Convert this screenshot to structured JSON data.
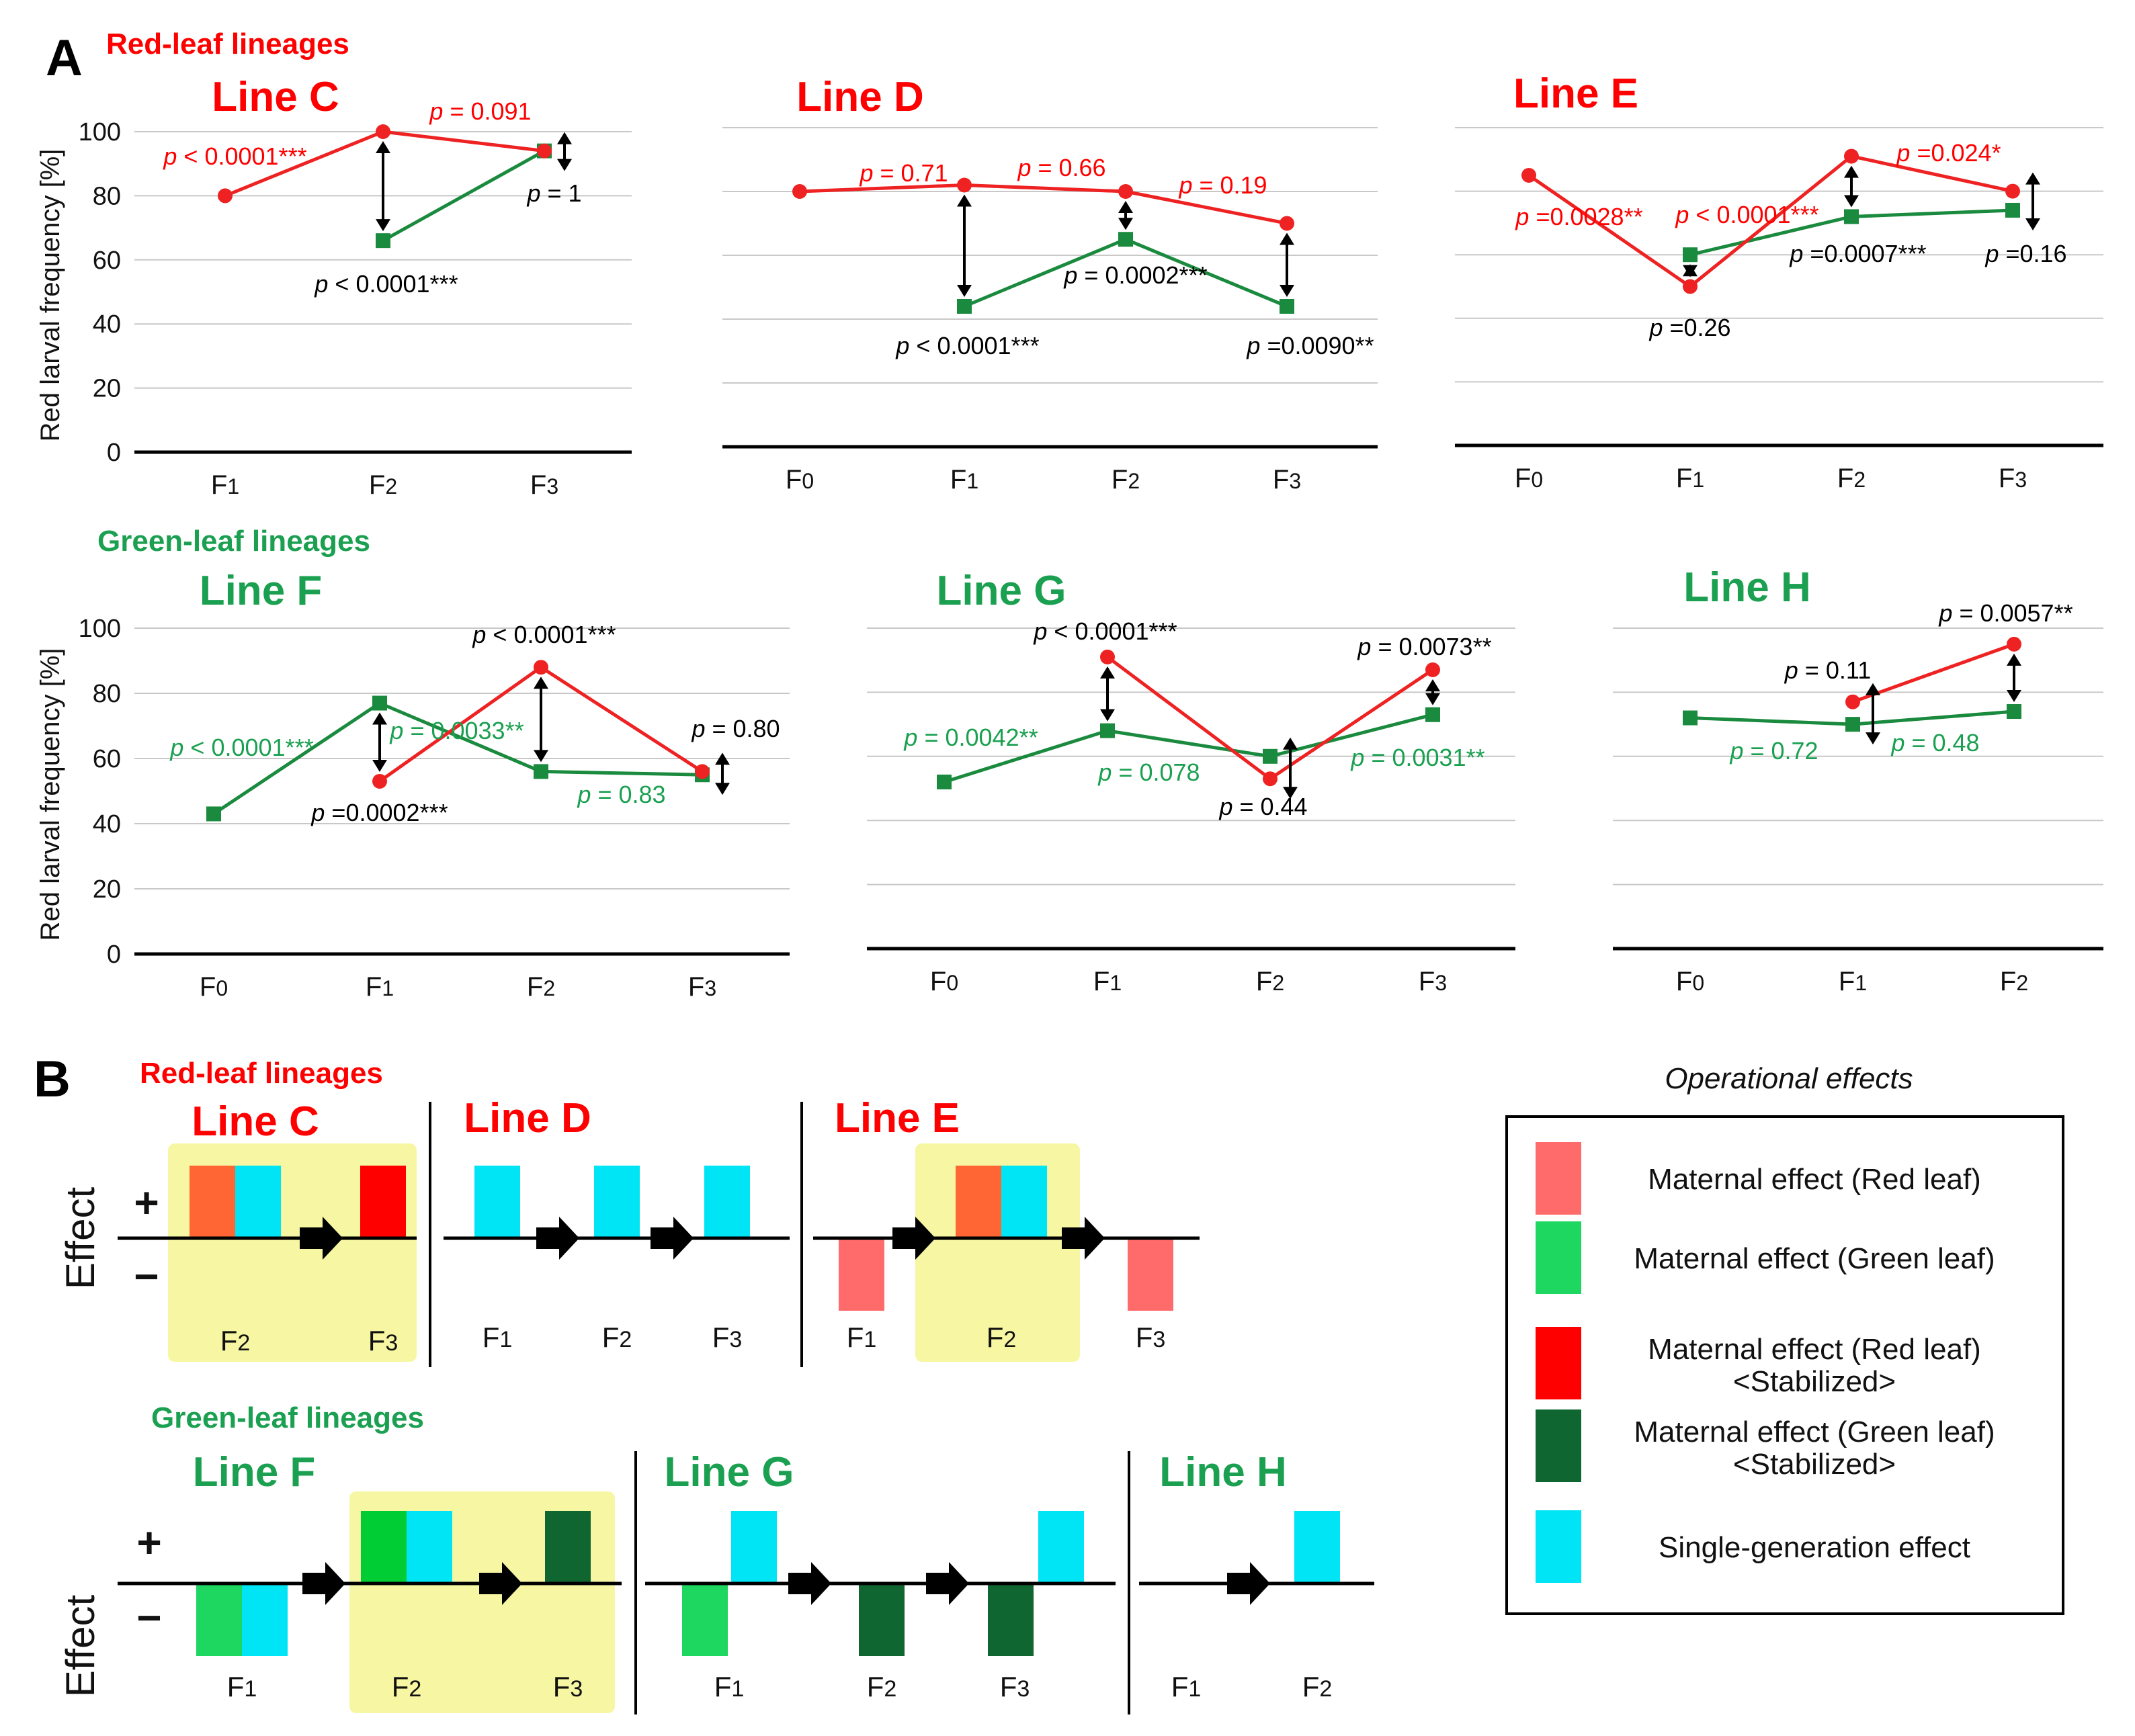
{
  "colors": {
    "red_line": "#ee2222",
    "green_line": "#1a8a3e",
    "red_text": "#ff0000",
    "green_text": "#1aa050",
    "highlight": "#f7f7a3",
    "grid": "#c8c8c8",
    "maternal_red": "#ff6b6b",
    "maternal_red_overlap": "#ff6633",
    "maternal_green": "#1ed760",
    "maternal_green_overlap": "#00cc33",
    "stabilized_red": "#ff0000",
    "stabilized_green": "#0f6630",
    "single_generation": "#00e5f5"
  },
  "panel_a": {
    "label": "A",
    "red_group_label": "Red-leaf lineages",
    "green_group_label": "Green-leaf lineages",
    "y_axis_label": "Red larval frequency [%]",
    "y_ticks": [
      "0",
      "20",
      "40",
      "60",
      "80",
      "100"
    ]
  },
  "panel_b": {
    "label": "B",
    "red_group_label": "Red-leaf lineages",
    "green_group_label": "Green-leaf lineages",
    "y_axis_label": "Effect",
    "plus": "+",
    "minus": "−",
    "legend_title": "Operational effects",
    "legend": [
      {
        "label": "Maternal effect (Red leaf)",
        "sub": "",
        "color": "#ff6b6b"
      },
      {
        "label": "Maternal effect (Green leaf)",
        "sub": "",
        "color": "#1ed760"
      },
      {
        "label": "Maternal effect (Red leaf)",
        "sub": "<Stabilized>",
        "color": "#ff0000"
      },
      {
        "label": "Maternal effect (Green leaf)",
        "sub": "<Stabilized>",
        "color": "#0f6630"
      },
      {
        "label": "Single-generation effect",
        "sub": "",
        "color": "#00e5f5"
      }
    ]
  },
  "chart_data": [
    {
      "type": "line",
      "group": "red-leaf",
      "title": "Line C",
      "categories": [
        "F1",
        "F2",
        "F3"
      ],
      "ylim": [
        0,
        100
      ],
      "ylabel": "Red larval frequency [%]",
      "series": [
        {
          "name": "red",
          "values": [
            80,
            100,
            94
          ]
        },
        {
          "name": "green",
          "values": [
            null,
            66,
            94
          ]
        }
      ],
      "arrows": [
        1,
        2
      ],
      "annotations": [
        {
          "text": "p < 0.0001***",
          "color": "red"
        },
        {
          "text": "p = 0.091",
          "color": "red"
        },
        {
          "text": "p < 0.0001***",
          "color": "black"
        },
        {
          "text": "p = 1",
          "color": "black"
        }
      ]
    },
    {
      "type": "line",
      "group": "red-leaf",
      "title": "Line D",
      "categories": [
        "F0",
        "F1",
        "F2",
        "F3"
      ],
      "ylim": [
        0,
        100
      ],
      "series": [
        {
          "name": "red",
          "values": [
            80,
            82,
            80,
            70
          ]
        },
        {
          "name": "green",
          "values": [
            null,
            44,
            65,
            44
          ]
        }
      ],
      "arrows": [
        1,
        2,
        3
      ],
      "annotations": [
        {
          "text": "p = 0.71",
          "color": "red"
        },
        {
          "text": "p = 0.66",
          "color": "red"
        },
        {
          "text": "p = 0.19",
          "color": "red"
        },
        {
          "text": "p < 0.0001***",
          "color": "black"
        },
        {
          "text": "p = 0.0002***",
          "color": "black"
        },
        {
          "text": "p =0.0090**",
          "color": "black"
        }
      ]
    },
    {
      "type": "line",
      "group": "red-leaf",
      "title": "Line E",
      "categories": [
        "F0",
        "F1",
        "F2",
        "F3"
      ],
      "ylim": [
        0,
        100
      ],
      "series": [
        {
          "name": "red",
          "values": [
            85,
            50,
            91,
            80
          ]
        },
        {
          "name": "green",
          "values": [
            null,
            60,
            72,
            74
          ]
        }
      ],
      "arrows": [
        1,
        2,
        3
      ],
      "annotations": [
        {
          "text": "p =0.0028**",
          "color": "red"
        },
        {
          "text": "p < 0.0001***",
          "color": "red"
        },
        {
          "text": "p =0.024*",
          "color": "red"
        },
        {
          "text": "p =0.26",
          "color": "black"
        },
        {
          "text": "p =0.0007***",
          "color": "black"
        },
        {
          "text": "p =0.16",
          "color": "black"
        }
      ]
    },
    {
      "type": "line",
      "group": "green-leaf",
      "title": "Line F",
      "categories": [
        "F0",
        "F1",
        "F2",
        "F3"
      ],
      "ylim": [
        0,
        100
      ],
      "ylabel": "Red larval frequency [%]",
      "series": [
        {
          "name": "red",
          "values": [
            null,
            53,
            88,
            56
          ]
        },
        {
          "name": "green",
          "values": [
            43,
            77,
            56,
            55
          ]
        }
      ],
      "arrows": [
        1,
        2,
        3
      ],
      "annotations": [
        {
          "text": "p < 0.0001***",
          "color": "green"
        },
        {
          "text": "p = 0.0033**",
          "color": "green"
        },
        {
          "text": "p = 0.83",
          "color": "green"
        },
        {
          "text": "p < 0.0001***",
          "color": "black"
        },
        {
          "text": "p =0.0002***",
          "color": "black"
        },
        {
          "text": "p = 0.80",
          "color": "black"
        }
      ]
    },
    {
      "type": "line",
      "group": "green-leaf",
      "title": "Line G",
      "categories": [
        "F0",
        "F1",
        "F2",
        "F3"
      ],
      "ylim": [
        0,
        100
      ],
      "series": [
        {
          "name": "red",
          "values": [
            null,
            91,
            53,
            87
          ]
        },
        {
          "name": "green",
          "values": [
            52,
            68,
            60,
            73
          ]
        }
      ],
      "arrows": [
        1,
        2,
        3
      ],
      "annotations": [
        {
          "text": "p = 0.0042**",
          "color": "green"
        },
        {
          "text": "p = 0.078",
          "color": "green"
        },
        {
          "text": "p = 0.0031**",
          "color": "green"
        },
        {
          "text": "p < 0.0001***",
          "color": "black"
        },
        {
          "text": "p = 0.44",
          "color": "black"
        },
        {
          "text": "p = 0.0073**",
          "color": "black"
        }
      ]
    },
    {
      "type": "line",
      "group": "green-leaf",
      "title": "Line H",
      "categories": [
        "F0",
        "F1",
        "F2"
      ],
      "ylim": [
        0,
        100
      ],
      "series": [
        {
          "name": "red",
          "values": [
            null,
            77,
            95
          ]
        },
        {
          "name": "green",
          "values": [
            72,
            70,
            74
          ]
        }
      ],
      "arrows": [
        1,
        2
      ],
      "annotations": [
        {
          "text": "p = 0.72",
          "color": "green"
        },
        {
          "text": "p = 0.48",
          "color": "green"
        },
        {
          "text": "p = 0.11",
          "color": "black"
        },
        {
          "text": "p = 0.0057**",
          "color": "black"
        }
      ]
    },
    {
      "type": "bar",
      "panel": "B",
      "group": "red-leaf",
      "title": "Line C",
      "generations": [
        "F2",
        "F3"
      ],
      "effects": [
        {
          "generation": "F2",
          "direction": "+",
          "kinds": [
            "maternal-red",
            "single-generation"
          ]
        },
        {
          "generation": "F3",
          "direction": "+",
          "kinds": [
            "maternal-red-stabilized"
          ]
        }
      ],
      "highlighted": [
        "F2",
        "F3"
      ]
    },
    {
      "type": "bar",
      "panel": "B",
      "group": "red-leaf",
      "title": "Line D",
      "generations": [
        "F1",
        "F2",
        "F3"
      ],
      "effects": [
        {
          "generation": "F1",
          "direction": "+",
          "kinds": [
            "single-generation"
          ]
        },
        {
          "generation": "F2",
          "direction": "+",
          "kinds": [
            "single-generation"
          ]
        },
        {
          "generation": "F3",
          "direction": "+",
          "kinds": [
            "single-generation"
          ]
        }
      ],
      "highlighted": []
    },
    {
      "type": "bar",
      "panel": "B",
      "group": "red-leaf",
      "title": "Line E",
      "generations": [
        "F1",
        "F2",
        "F3"
      ],
      "effects": [
        {
          "generation": "F1",
          "direction": "-",
          "kinds": [
            "maternal-red"
          ]
        },
        {
          "generation": "F2",
          "direction": "+",
          "kinds": [
            "maternal-red",
            "single-generation"
          ]
        },
        {
          "generation": "F3",
          "direction": "-",
          "kinds": [
            "maternal-red"
          ]
        }
      ],
      "highlighted": [
        "F2"
      ]
    },
    {
      "type": "bar",
      "panel": "B",
      "group": "green-leaf",
      "title": "Line F",
      "generations": [
        "F1",
        "F2",
        "F3"
      ],
      "effects": [
        {
          "generation": "F1",
          "direction": "-",
          "kinds": [
            "maternal-green",
            "single-generation"
          ]
        },
        {
          "generation": "F2",
          "direction": "+",
          "kinds": [
            "maternal-green",
            "single-generation"
          ]
        },
        {
          "generation": "F3",
          "direction": "+",
          "kinds": [
            "maternal-green-stabilized"
          ]
        }
      ],
      "highlighted": [
        "F2",
        "F3"
      ]
    },
    {
      "type": "bar",
      "panel": "B",
      "group": "green-leaf",
      "title": "Line G",
      "generations": [
        "F1",
        "F2",
        "F3"
      ],
      "effects": [
        {
          "generation": "F1",
          "direction": "-",
          "kinds": [
            "maternal-green"
          ]
        },
        {
          "generation": "F1",
          "direction": "+",
          "kinds": [
            "single-generation"
          ]
        },
        {
          "generation": "F2",
          "direction": "-",
          "kinds": [
            "maternal-green-stabilized"
          ]
        },
        {
          "generation": "F3",
          "direction": "-",
          "kinds": [
            "maternal-green-stabilized"
          ]
        },
        {
          "generation": "F3",
          "direction": "+",
          "kinds": [
            "single-generation"
          ]
        }
      ],
      "highlighted": []
    },
    {
      "type": "bar",
      "panel": "B",
      "group": "green-leaf",
      "title": "Line H",
      "generations": [
        "F1",
        "F2"
      ],
      "effects": [
        {
          "generation": "F2",
          "direction": "+",
          "kinds": [
            "single-generation"
          ]
        }
      ],
      "highlighted": []
    }
  ]
}
